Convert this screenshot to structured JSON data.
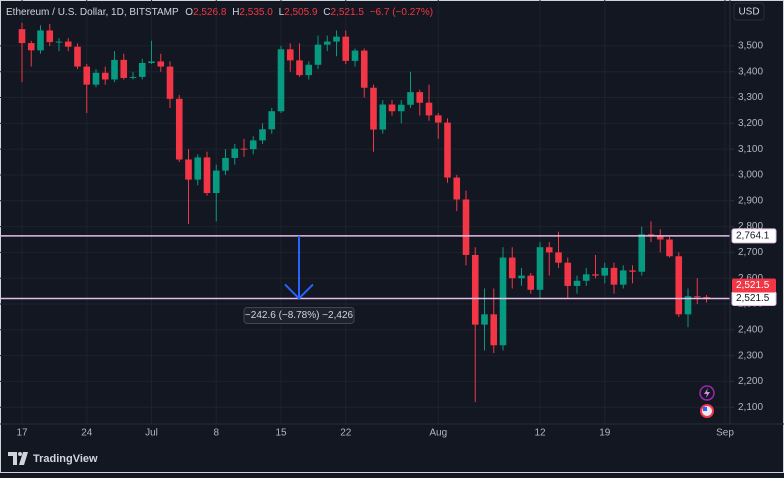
{
  "chart_data": {
    "type": "candlestick",
    "header": {
      "symbol": "Ethereum / U.S. Dollar, 1D, BITSTAMP",
      "ohlc": [
        {
          "key": "O",
          "value": "2,526.8"
        },
        {
          "key": "H",
          "value": "2,535.0"
        },
        {
          "key": "L",
          "value": "2,505.9"
        },
        {
          "key": "C",
          "value": "2,521.5"
        }
      ],
      "change": "−6.7 (−0.27%)"
    },
    "currency": "USD",
    "brand": "TradingView",
    "up_color": "#089981",
    "down_color": "#f23645",
    "categories": [
      "17",
      null,
      null,
      null,
      null,
      null,
      null,
      "24",
      null,
      null,
      null,
      null,
      null,
      null,
      "Jul",
      null,
      null,
      null,
      null,
      null,
      null,
      "8",
      null,
      null,
      null,
      null,
      null,
      null,
      "15",
      null,
      null,
      null,
      null,
      null,
      null,
      "22",
      null,
      null,
      null,
      null,
      null,
      null,
      null,
      null,
      null,
      "Aug",
      null,
      null,
      null,
      null,
      null,
      null,
      null,
      null,
      null,
      null,
      "12",
      null,
      null,
      null,
      null,
      null,
      null,
      "19",
      null,
      null,
      null,
      null,
      null,
      null,
      null,
      null,
      null,
      null,
      null,
      null,
      "Sep"
    ],
    "open": [
      3565,
      3511,
      3483,
      3560,
      3515,
      3517,
      3497,
      3420,
      3350,
      3396,
      3370,
      3446,
      3376,
      3380,
      3434,
      3440,
      3420,
      3295,
      3060,
      2982,
      3068,
      2930,
      3017,
      3066,
      3102,
      3100,
      3134,
      3177,
      3247,
      3487,
      3444,
      3387,
      3427,
      3505,
      3517,
      3536,
      3442,
      3482,
      3338,
      3176,
      3273,
      3247,
      3272,
      3321,
      3280,
      3231,
      3203,
      2990,
      2905,
      2690,
      2420,
      2460,
      2340,
      2680,
      2600,
      2610,
      2555,
      2720,
      2700,
      2660,
      2570,
      2590,
      2615,
      2610,
      2640,
      2575,
      2630,
      2625,
      2770,
      2765,
      2750,
      2685,
      2460,
      2530,
      2526.8,
      null,
      null
    ],
    "high": [
      3590,
      3520,
      3580,
      3585,
      3530,
      3530,
      3510,
      3430,
      3410,
      3420,
      3480,
      3470,
      3400,
      3450,
      3520,
      3470,
      3440,
      3310,
      3100,
      3080,
      3090,
      3040,
      3100,
      3120,
      3140,
      3150,
      3200,
      3260,
      3500,
      3510,
      3510,
      3440,
      3540,
      3540,
      3560,
      3560,
      3490,
      3490,
      3350,
      3290,
      3290,
      3290,
      3400,
      3330,
      3350,
      3240,
      3220,
      3000,
      2940,
      2720,
      2560,
      2560,
      2720,
      2720,
      2640,
      2620,
      2740,
      2740,
      2780,
      2680,
      2610,
      2640,
      2690,
      2660,
      2660,
      2650,
      2650,
      2800,
      2820,
      2790,
      2760,
      2700,
      2560,
      2600,
      2535,
      null,
      null
    ],
    "low": [
      3360,
      3420,
      3470,
      3500,
      3480,
      3480,
      3410,
      3240,
      3340,
      3350,
      3360,
      3370,
      3370,
      3370,
      3430,
      3400,
      3260,
      3050,
      2810,
      2960,
      2920,
      2820,
      3000,
      3040,
      3070,
      3080,
      3120,
      3160,
      3240,
      3400,
      3380,
      3370,
      3410,
      3480,
      3460,
      3430,
      3420,
      3300,
      3090,
      3160,
      3230,
      3200,
      3260,
      3230,
      3210,
      3140,
      2970,
      2860,
      2650,
      2120,
      2320,
      2310,
      2320,
      2560,
      2570,
      2540,
      2520,
      2610,
      2640,
      2520,
      2540,
      2570,
      2600,
      2580,
      2540,
      2560,
      2580,
      2610,
      2740,
      2700,
      2680,
      2450,
      2410,
      2500,
      2505.9,
      null,
      null
    ],
    "close": [
      3511,
      3483,
      3560,
      3515,
      3517,
      3497,
      3420,
      3350,
      3396,
      3370,
      3446,
      3376,
      3380,
      3434,
      3440,
      3420,
      3295,
      3060,
      2982,
      3068,
      2930,
      3017,
      3066,
      3102,
      3100,
      3134,
      3177,
      3247,
      3487,
      3444,
      3387,
      3427,
      3505,
      3517,
      3536,
      3442,
      3482,
      3338,
      3176,
      3273,
      3247,
      3272,
      3321,
      3280,
      3231,
      3203,
      2990,
      2905,
      2690,
      2420,
      2460,
      2340,
      2680,
      2600,
      2610,
      2555,
      2720,
      2700,
      2660,
      2570,
      2590,
      2615,
      2610,
      2640,
      2575,
      2630,
      2625,
      2770,
      2765,
      2750,
      2685,
      2460,
      2530,
      2527,
      2521.5,
      null,
      null
    ],
    "ylim": [
      2035,
      3678
    ],
    "yticks": [
      {
        "value": 2100,
        "label": "2,100"
      },
      {
        "value": 2200,
        "label": "2,200"
      },
      {
        "value": 2300,
        "label": "2,300"
      },
      {
        "value": 2400,
        "label": "2,400"
      },
      {
        "value": 2500,
        "label": "2,500"
      },
      {
        "value": 2600,
        "label": "2,600"
      },
      {
        "value": 2700,
        "label": "2,700"
      },
      {
        "value": 2800,
        "label": "2,800"
      },
      {
        "value": 2900,
        "label": "2,900"
      },
      {
        "value": 3000,
        "label": "3,000"
      },
      {
        "value": 3100,
        "label": "3,100"
      },
      {
        "value": 3200,
        "label": "3,200"
      },
      {
        "value": 3300,
        "label": "3,300"
      },
      {
        "value": 3400,
        "label": "3,400"
      },
      {
        "value": 3500,
        "label": "3,500"
      }
    ],
    "grid": true,
    "last_price": {
      "value": 2521.5,
      "label": "2,521.5"
    },
    "hlines": [
      {
        "value": 2764.1,
        "label": "2,764.1",
        "color": "#e1bee7"
      },
      {
        "value": 2521.5,
        "label": "2,521.5",
        "color": "#e1bee7"
      }
    ],
    "measure": {
      "from": 2764.1,
      "to": 2521.5,
      "text": "−242.6 (−8.78%) −2,426",
      "color": "#2962ff"
    }
  }
}
